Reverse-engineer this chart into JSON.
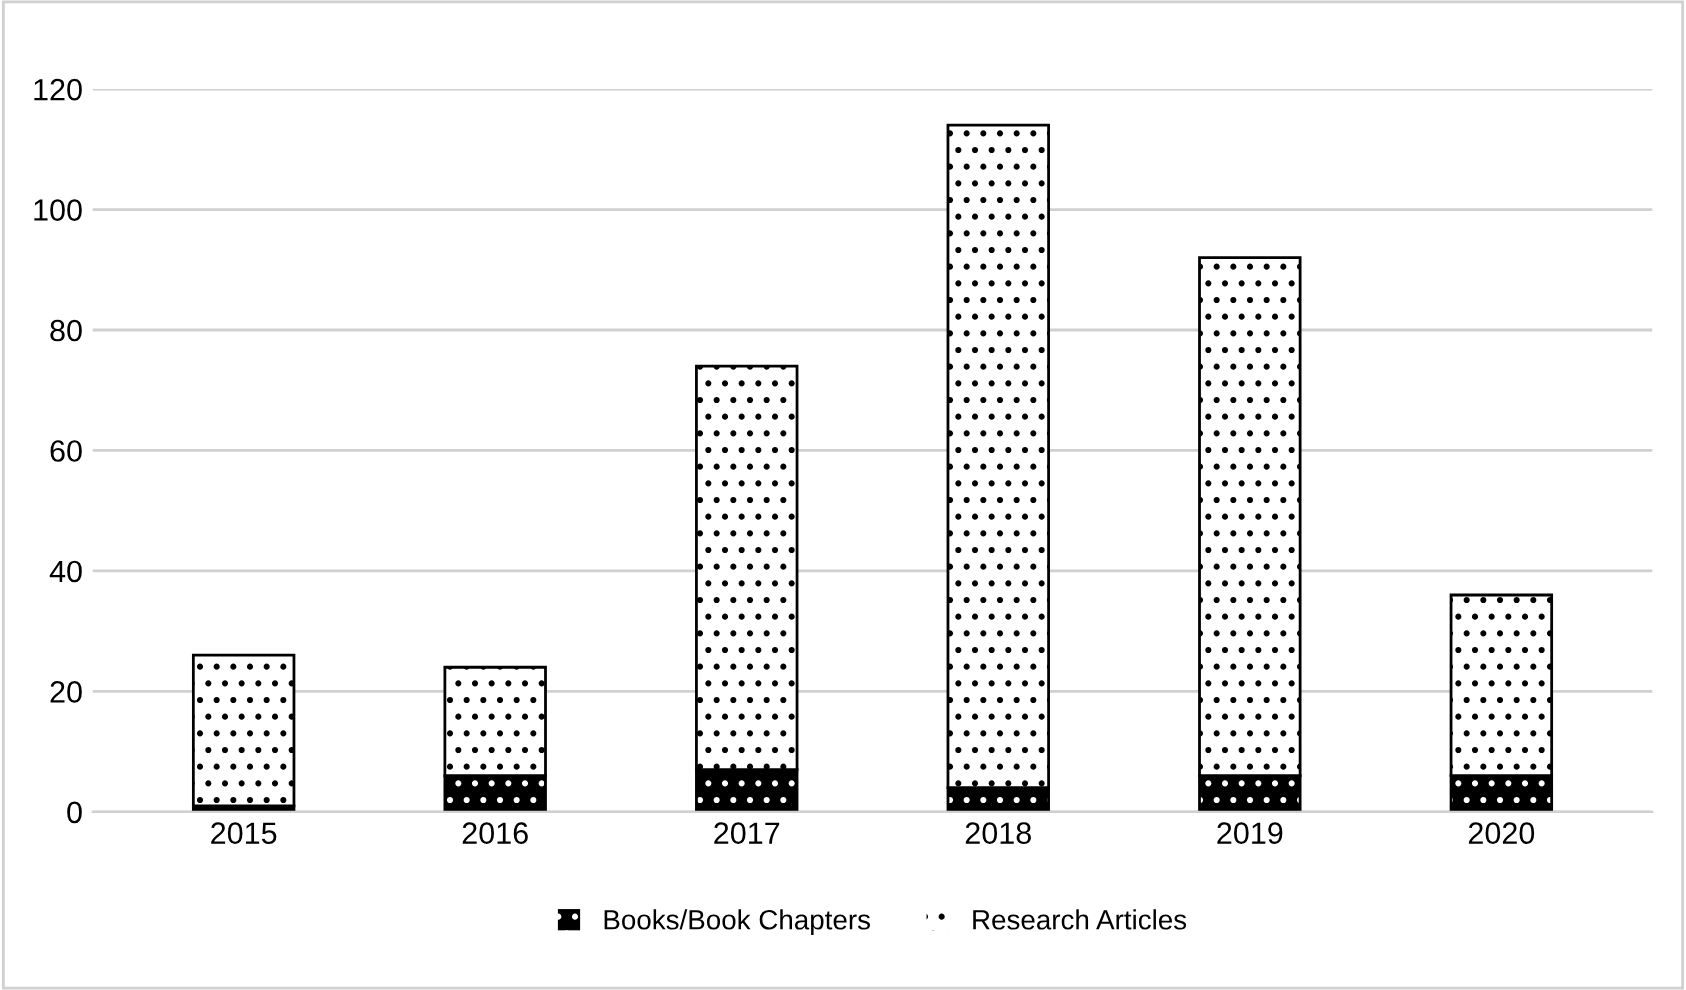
{
  "chart_data": {
    "type": "bar",
    "stacked": true,
    "categories": [
      "2015",
      "2016",
      "2017",
      "2018",
      "2019",
      "2020"
    ],
    "series": [
      {
        "name": "Books/Book Chapters",
        "color": "#000000",
        "values": [
          1,
          6,
          7,
          4,
          6,
          6
        ]
      },
      {
        "name": "Research Articles",
        "color": "#ffffff",
        "values": [
          25,
          18,
          67,
          110,
          86,
          30
        ]
      }
    ],
    "ylim": [
      0,
      120
    ],
    "yticks": [
      0,
      20,
      40,
      60,
      80,
      100,
      120
    ],
    "grid": "y",
    "legend": "bottom"
  }
}
